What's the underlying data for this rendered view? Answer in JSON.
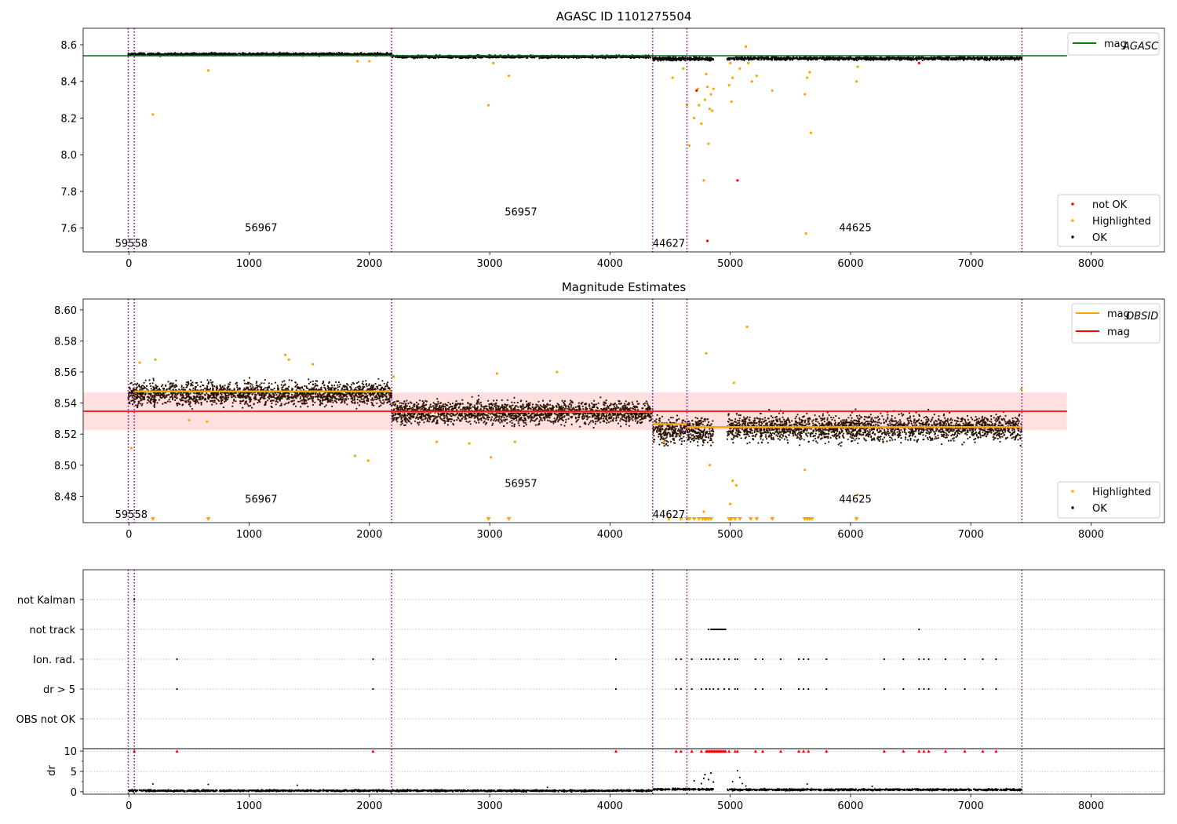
{
  "chart_data": [
    {
      "type": "scatter",
      "title": "AGASC ID 1101275504",
      "xlim": [
        -380,
        8610
      ],
      "ylim": [
        7.47,
        8.69
      ],
      "xticks": [
        "0",
        "1000",
        "2000",
        "3000",
        "4000",
        "5000",
        "6000",
        "7000",
        "8000"
      ],
      "yticks": [
        "7.6",
        "7.8",
        "8.0",
        "8.2",
        "8.4",
        "8.6"
      ],
      "ytick_values": [
        7.6,
        7.8,
        8.0,
        8.2,
        8.4,
        8.6
      ],
      "grid": false,
      "legend_upper": {
        "position": "top-right",
        "entries": [
          "mag_AGASC"
        ]
      },
      "legend_lower": {
        "position": "bottom-right",
        "entries": [
          "not OK",
          "Highlighted",
          "OK"
        ]
      },
      "mag_agasc": 8.54,
      "obs_boundaries": [
        -5,
        45,
        2185,
        4355,
        4640,
        7425
      ],
      "obs_labels": [
        {
          "text": "59558",
          "x": 20,
          "y": 7.52
        },
        {
          "text": "56967",
          "x": 1100,
          "y": 7.605
        },
        {
          "text": "56957",
          "x": 3260,
          "y": 7.69
        },
        {
          "text": "44627",
          "x": 4490,
          "y": 7.52
        },
        {
          "text": "44625",
          "x": 6040,
          "y": 7.605
        }
      ],
      "series": [
        {
          "name": "OK",
          "color": "#000000",
          "segments": [
            {
              "x": [
                -5,
                2185
              ],
              "y": 8.548,
              "spread": 0.007
            },
            {
              "x": [
                2185,
                4355
              ],
              "y": 8.535,
              "spread": 0.007
            },
            {
              "x": [
                4355,
                4860
              ],
              "y": 8.523,
              "spread": 0.009
            },
            {
              "x": [
                4975,
                7425
              ],
              "y": 8.525,
              "spread": 0.008
            }
          ]
        },
        {
          "name": "Highlighted",
          "color": "#ffa500",
          "points": [
            [
              200,
              8.22
            ],
            [
              660,
              8.46
            ],
            [
              1900,
              8.51
            ],
            [
              2000,
              8.51
            ],
            [
              2990,
              8.27
            ],
            [
              3030,
              8.5
            ],
            [
              3160,
              8.43
            ],
            [
              4520,
              8.42
            ],
            [
              4610,
              8.47
            ],
            [
              4640,
              8.27
            ],
            [
              4660,
              8.05
            ],
            [
              4700,
              8.2
            ],
            [
              4730,
              8.36
            ],
            [
              4740,
              8.27
            ],
            [
              4760,
              8.17
            ],
            [
              4780,
              7.86
            ],
            [
              4790,
              8.3
            ],
            [
              4800,
              8.44
            ],
            [
              4810,
              8.37
            ],
            [
              4820,
              8.06
            ],
            [
              4830,
              8.25
            ],
            [
              4840,
              8.33
            ],
            [
              4850,
              8.24
            ],
            [
              4860,
              8.36
            ],
            [
              4990,
              8.38
            ],
            [
              5000,
              8.5
            ],
            [
              5010,
              8.29
            ],
            [
              5020,
              8.42
            ],
            [
              5080,
              8.47
            ],
            [
              5130,
              8.59
            ],
            [
              5150,
              8.5
            ],
            [
              5180,
              8.4
            ],
            [
              5220,
              8.43
            ],
            [
              5350,
              8.35
            ],
            [
              5620,
              8.33
            ],
            [
              5630,
              7.57
            ],
            [
              5640,
              8.42
            ],
            [
              5660,
              8.45
            ],
            [
              5670,
              8.12
            ],
            [
              6050,
              8.4
            ],
            [
              6060,
              8.48
            ]
          ]
        },
        {
          "name": "not OK",
          "color": "#ff0000",
          "points": [
            [
              4720,
              8.35
            ],
            [
              4810,
              7.53
            ],
            [
              5060,
              7.86
            ],
            [
              6570,
              8.5
            ]
          ]
        }
      ]
    },
    {
      "type": "scatter",
      "title": "Magnitude Estimates",
      "xlim": [
        -380,
        8610
      ],
      "ylim": [
        8.463,
        8.607
      ],
      "xticks": [
        "0",
        "1000",
        "2000",
        "3000",
        "4000",
        "5000",
        "6000",
        "7000",
        "8000"
      ],
      "yticks": [
        "8.48",
        "8.50",
        "8.52",
        "8.54",
        "8.56",
        "8.58",
        "8.60"
      ],
      "ytick_values": [
        8.48,
        8.5,
        8.52,
        8.54,
        8.56,
        8.58,
        8.6
      ],
      "grid": false,
      "legend_upper": {
        "position": "top-right",
        "entries": [
          "mag_OBSID",
          "mag"
        ]
      },
      "legend_lower": {
        "position": "bottom-right",
        "entries": [
          "Highlighted",
          "OK"
        ]
      },
      "mag": 8.5347,
      "mag_band": [
        8.5225,
        8.5468
      ],
      "mag_obsid": [
        {
          "x": [
            45,
            2185
          ],
          "y": 8.5475
        },
        {
          "x": [
            2185,
            4355
          ],
          "y": 8.5345
        },
        {
          "x": [
            4355,
            4640
          ],
          "y": 8.5265
        },
        {
          "x": [
            4640,
            7425
          ],
          "y": 8.5245
        }
      ],
      "obs_boundaries": [
        -5,
        45,
        2185,
        4355,
        4640,
        7425
      ],
      "obs_labels": [
        {
          "text": "59558",
          "x": 20,
          "y": 8.4685
        },
        {
          "text": "56967",
          "x": 1100,
          "y": 8.4785
        },
        {
          "text": "56957",
          "x": 3260,
          "y": 8.4885
        },
        {
          "text": "44627",
          "x": 4490,
          "y": 8.4685
        },
        {
          "text": "44625",
          "x": 6040,
          "y": 8.4785
        }
      ],
      "series": [
        {
          "name": "OK",
          "color": "#000000",
          "segments": [
            {
              "x": [
                -5,
                2185
              ],
              "y": 8.546,
              "spread": 0.007
            },
            {
              "x": [
                2185,
                4355
              ],
              "y": 8.534,
              "spread": 0.007
            },
            {
              "x": [
                4355,
                4860
              ],
              "y": 8.522,
              "spread": 0.008
            },
            {
              "x": [
                4975,
                7425
              ],
              "y": 8.524,
              "spread": 0.008
            }
          ]
        },
        {
          "name": "Highlighted",
          "color": "#ffa500",
          "points": [
            [
              20,
              8.511
            ],
            [
              90,
              8.566
            ],
            [
              220,
              8.568
            ],
            [
              500,
              8.529
            ],
            [
              650,
              8.528
            ],
            [
              1300,
              8.571
            ],
            [
              1330,
              8.568
            ],
            [
              1530,
              8.565
            ],
            [
              1880,
              8.506
            ],
            [
              1990,
              8.503
            ],
            [
              2200,
              8.557
            ],
            [
              2560,
              8.515
            ],
            [
              2830,
              8.514
            ],
            [
              3060,
              8.559
            ],
            [
              3010,
              8.505
            ],
            [
              3210,
              8.515
            ],
            [
              3560,
              8.56
            ],
            [
              4450,
              8.515
            ],
            [
              4780,
              8.47
            ],
            [
              4800,
              8.572
            ],
            [
              4830,
              8.5
            ],
            [
              5000,
              8.475
            ],
            [
              5020,
              8.49
            ],
            [
              5030,
              8.553
            ],
            [
              5050,
              8.487
            ],
            [
              5140,
              8.589
            ],
            [
              5620,
              8.497
            ],
            [
              6060,
              8.481
            ],
            [
              7420,
              8.549
            ]
          ]
        },
        {
          "name": "Highlighted (off-scale)",
          "color": "#ffa500",
          "points": [
            200,
            660,
            2990,
            3160,
            4490,
            4590,
            4640,
            4660,
            4700,
            4740,
            4770,
            4790,
            4800,
            4820,
            4840,
            4990,
            5000,
            5010,
            5040,
            5080,
            5170,
            5220,
            5350,
            5620,
            5640,
            5660,
            5680,
            6050
          ]
        }
      ]
    },
    {
      "type": "scatter",
      "title": "",
      "xlim": [
        -380,
        8610
      ],
      "categories": [
        "not Kalman",
        "not track",
        "Ion. rad.",
        "dr > 5",
        "OBS not OK"
      ],
      "obs_boundaries": [
        -5,
        45,
        2185,
        4355,
        4640,
        7425
      ],
      "flags": {
        "not Kalman": [
          45
        ],
        "not track": [
          4820,
          4840,
          4850,
          4860,
          4870,
          4880,
          4890,
          4900,
          4910,
          4920,
          4930,
          4940,
          4950,
          4960,
          6570
        ],
        "Ion. rad.": [
          400,
          2030,
          4050,
          4550,
          4590,
          4680,
          4760,
          4800,
          4830,
          4860,
          4900,
          4950,
          4990,
          5040,
          5060,
          5210,
          5270,
          5420,
          5570,
          5610,
          5650,
          5800,
          6280,
          6440,
          6570,
          6610,
          6650,
          6790,
          6950,
          7100,
          7210
        ],
        "dr > 5": [
          400,
          2030,
          4050,
          4550,
          4590,
          4680,
          4760,
          4800,
          4830,
          4860,
          4900,
          4950,
          4990,
          5040,
          5060,
          5210,
          5270,
          5420,
          5570,
          5610,
          5650,
          5800,
          6280,
          6440,
          6570,
          6610,
          6650,
          6790,
          6950,
          7100,
          7210
        ],
        "OBS not OK": []
      }
    },
    {
      "type": "scatter",
      "title": "",
      "ylabel": "dr",
      "xlim": [
        -380,
        8610
      ],
      "ylim": [
        -0.6,
        10.6
      ],
      "xticks": [
        "0",
        "1000",
        "2000",
        "3000",
        "4000",
        "5000",
        "6000",
        "7000",
        "8000"
      ],
      "yticks": [
        "0",
        "5",
        "10"
      ],
      "ytick_values": [
        0,
        5,
        10
      ],
      "obs_boundaries": [
        -5,
        45,
        2185,
        4355,
        4640,
        7425
      ],
      "baseline": [
        {
          "x": [
            -5,
            4355
          ],
          "y": 0.25
        },
        {
          "x": [
            4355,
            4860
          ],
          "y": 0.6
        },
        {
          "x": [
            4975,
            7425
          ],
          "y": 0.5
        }
      ],
      "scatter_points": [
        [
          200,
          1.9
        ],
        [
          660,
          1.8
        ],
        [
          1400,
          1.6
        ],
        [
          3480,
          1.1
        ],
        [
          4700,
          2.7
        ],
        [
          4760,
          2.0
        ],
        [
          4780,
          3.3
        ],
        [
          4790,
          4.2
        ],
        [
          4820,
          3.0
        ],
        [
          4840,
          4.6
        ],
        [
          4860,
          2.4
        ],
        [
          5020,
          2.5
        ],
        [
          5060,
          5.2
        ],
        [
          5080,
          3.5
        ],
        [
          5100,
          2.0
        ],
        [
          5130,
          1.4
        ],
        [
          5640,
          1.9
        ],
        [
          6180,
          1.3
        ]
      ],
      "clipped_dr_gt_10": [
        45,
        400,
        2030,
        4050,
        4550,
        4590,
        4680,
        4760,
        4800,
        4810,
        4820,
        4830,
        4840,
        4850,
        4860,
        4870,
        4880,
        4890,
        4900,
        4910,
        4920,
        4930,
        4940,
        4950,
        4960,
        4990,
        5040,
        5060,
        5210,
        5270,
        5420,
        5570,
        5610,
        5650,
        5800,
        6280,
        6440,
        6570,
        6610,
        6650,
        6790,
        6950,
        7100,
        7210
      ]
    }
  ],
  "colors": {
    "ok": "#000000",
    "highlighted": "#ffa500",
    "not_ok": "#ff0000",
    "mag_agasc": "#008000",
    "mag": "#ff0000",
    "mag_obsid": "#ffa500",
    "band": "#ffcccc",
    "boundary": "#800080",
    "ok_dense": "#2a1200"
  },
  "legend_text": {
    "mag_agasc_base": "mag",
    "mag_agasc_sub": "AGASC",
    "mag_obsid_base": "mag",
    "mag_obsid_sub": "OBSID",
    "mag": "mag",
    "not_ok": "not OK",
    "highlighted": "Highlighted",
    "ok": "OK"
  }
}
